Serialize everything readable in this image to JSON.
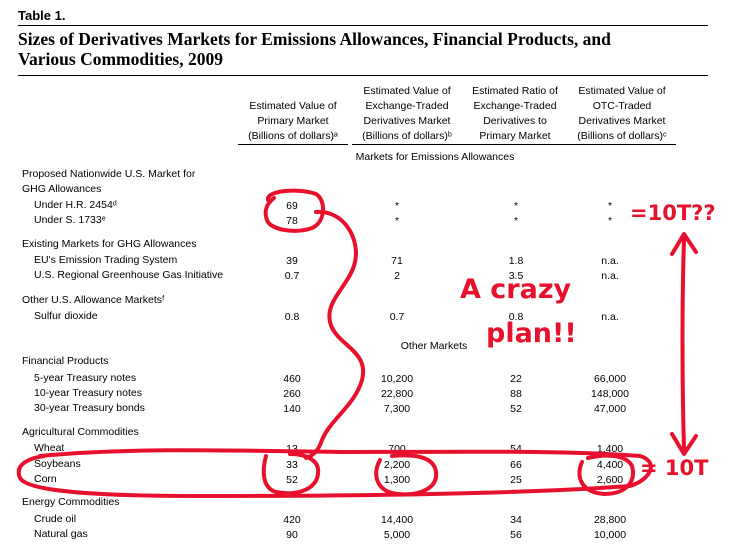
{
  "table_number": "Table 1.",
  "title_line1": "Sizes of Derivatives Markets for Emissions Allowances, Financial Products, and",
  "title_line2": "Various Commodities, 2009",
  "columns": {
    "c1": [
      "Estimated Value of",
      "Primary Market",
      "(Billions of dollars)ᵃ"
    ],
    "c2": [
      "Estimated Value of",
      "Exchange-Traded",
      "Derivatives Market",
      "(Billions of dollars)ᵇ"
    ],
    "c3": [
      "Estimated Ratio of",
      "Exchange-Traded",
      "Derivatives to",
      "Primary Market"
    ],
    "c4": [
      "Estimated Value of",
      "OTC-Traded",
      "Derivatives Market",
      "(Billions of dollars)ᶜ"
    ]
  },
  "section_emissions": "Markets for Emissions Allowances",
  "section_other": "Other Markets",
  "rows": {
    "g1_line1": "Proposed Nationwide U.S. Market for",
    "g1_line2": "GHG Allowances",
    "hr2454": {
      "label": "Under H.R. 2454ᵈ",
      "c1": "69",
      "c2": "*",
      "c3": "*",
      "c4": "*"
    },
    "s1733": {
      "label": "Under S. 1733ᵉ",
      "c1": "78",
      "c2": "*",
      "c3": "*",
      "c4": "*"
    },
    "g2": "Existing Markets for GHG Allowances",
    "eu": {
      "label": "EU's Emission Trading System",
      "c1": "39",
      "c2": "71",
      "c3": "1.8",
      "c4": "n.a."
    },
    "rggi": {
      "label": "U.S. Regional Greenhouse Gas Initiative",
      "c1": "0.7",
      "c2": "2",
      "c3": "3.5",
      "c4": "n.a."
    },
    "g3": "Other U.S. Allowance Marketsᶠ",
    "so2": {
      "label": "Sulfur dioxide",
      "c1": "0.8",
      "c2": "0.7",
      "c3": "0.8",
      "c4": "n.a."
    },
    "g4": "Financial Products",
    "t5": {
      "label": "5-year Treasury notes",
      "c1": "460",
      "c2": "10,200",
      "c3": "22",
      "c4": "66,000"
    },
    "t10": {
      "label": "10-year Treasury notes",
      "c1": "260",
      "c2": "22,800",
      "c3": "88",
      "c4": "148,000"
    },
    "t30": {
      "label": "30-year Treasury bonds",
      "c1": "140",
      "c2": "7,300",
      "c3": "52",
      "c4": "47,000"
    },
    "g5": "Agricultural Commodities",
    "wheat": {
      "label": "Wheat",
      "c1": "13",
      "c2": "700",
      "c3": "54",
      "c4": "1,400"
    },
    "soy": {
      "label": "Soybeans",
      "c1": "33",
      "c2": "2,200",
      "c3": "66",
      "c4": "4,400"
    },
    "corn": {
      "label": "Corn",
      "c1": "52",
      "c2": "1,300",
      "c3": "25",
      "c4": "2,600"
    },
    "g6": "Energy Commodities",
    "oil": {
      "label": "Crude oil",
      "c1": "420",
      "c2": "14,400",
      "c3": "34",
      "c4": "28,800"
    },
    "gas": {
      "label": "Natural gas",
      "c1": "90",
      "c2": "5,000",
      "c3": "56",
      "c4": "10,000"
    }
  },
  "annotations": {
    "note_10t_q": "=10T??",
    "note_crazy": "A crazy",
    "note_plan": "plan!!",
    "note_10t": "= 10T",
    "ink_color": "#e8112d"
  }
}
